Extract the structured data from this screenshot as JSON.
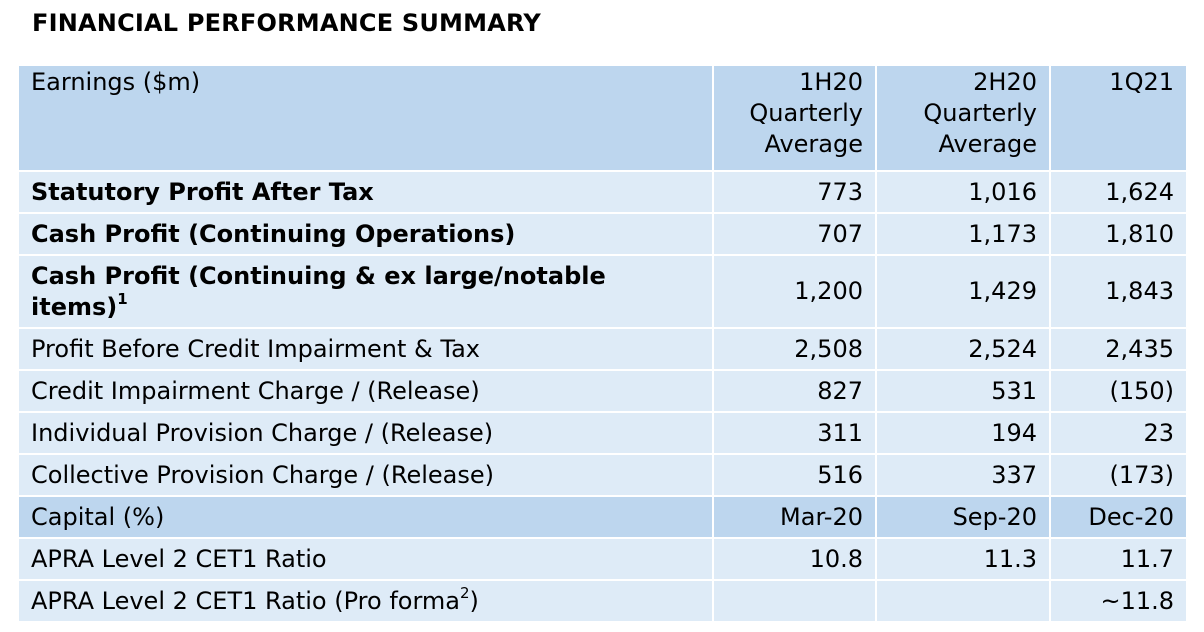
{
  "title": "FINANCIAL PERFORMANCE SUMMARY",
  "header": {
    "label": "Earnings ($m)",
    "cols": [
      {
        "l1": "1H20",
        "l2": "Quarterly",
        "l3": "Average"
      },
      {
        "l1": "2H20",
        "l2": "Quarterly",
        "l3": "Average"
      },
      {
        "l1": "1Q21",
        "l2": "",
        "l3": ""
      }
    ]
  },
  "rows": [
    {
      "label": "Statutory Profit After Tax",
      "values": [
        "773",
        "1,016",
        "1,624"
      ]
    },
    {
      "label": "Cash Profit (Continuing Operations)",
      "values": [
        "707",
        "1,173",
        "1,810"
      ]
    },
    {
      "label": "Cash Profit (Continuing & ex large/notable items)",
      "footnote": "1",
      "values": [
        "1,200",
        "1,429",
        "1,843"
      ]
    },
    {
      "label": "Profit Before Credit Impairment & Tax",
      "values": [
        "2,508",
        "2,524",
        "2,435"
      ]
    },
    {
      "label": "Credit Impairment Charge / (Release)",
      "values": [
        "827",
        "531",
        "(150)"
      ]
    },
    {
      "label": "Individual Provision Charge / (Release)",
      "values": [
        "311",
        "194",
        "23"
      ]
    },
    {
      "label": "Collective Provision Charge / (Release)",
      "values": [
        "516",
        "337",
        "(173)"
      ]
    }
  ],
  "capital": {
    "label": "Capital (%)",
    "cols": [
      "Mar-20",
      "Sep-20",
      "Dec-20"
    ]
  },
  "capital_rows": [
    {
      "label": "APRA Level 2 CET1 Ratio",
      "values": [
        "10.8",
        "11.3",
        "11.7"
      ]
    },
    {
      "label": "APRA Level 2 CET1 Ratio (Pro forma",
      "footnote": "2",
      "suffix": ")",
      "values": [
        "",
        "",
        "~11.8"
      ]
    }
  ],
  "colors": {
    "header_bg": "#bdd6ee",
    "body_bg": "#deebf7",
    "border": "#ffffff"
  }
}
